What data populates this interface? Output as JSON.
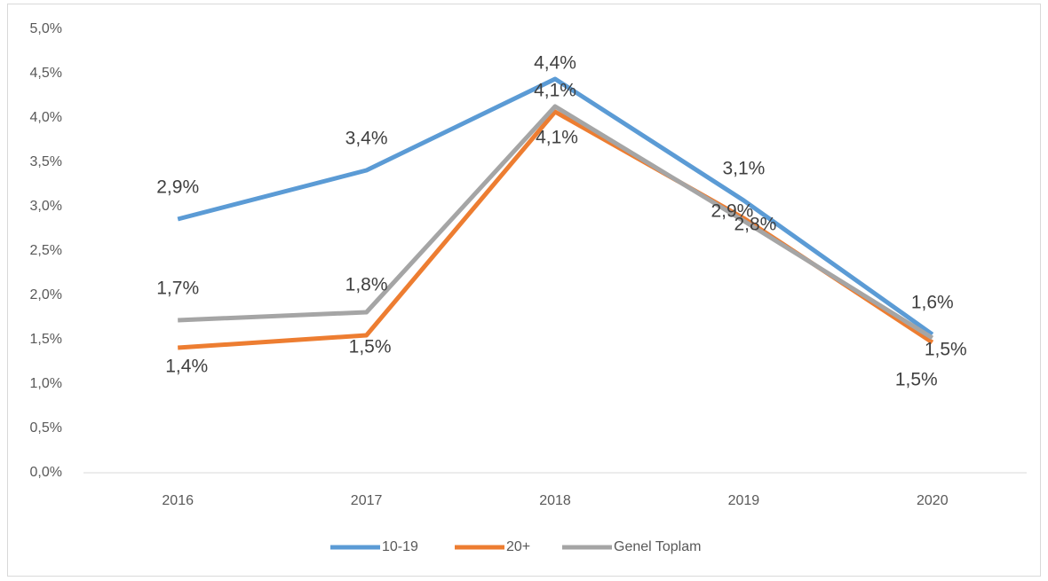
{
  "chart_data": {
    "type": "line",
    "categories": [
      "2016",
      "2017",
      "2018",
      "2019",
      "2020"
    ],
    "series": [
      {
        "name": "10-19",
        "color": "#5b9bd5",
        "values": [
          2.86,
          3.41,
          4.44,
          3.07,
          1.56
        ],
        "value_labels": [
          "2,9%",
          "3,4%",
          "4,4%",
          "3,1%",
          "1,6%"
        ]
      },
      {
        "name": "20+",
        "color": "#ed7d31",
        "values": [
          1.41,
          1.55,
          4.07,
          2.87,
          1.47
        ],
        "value_labels": [
          "1,4%",
          "1,5%",
          "4,1%",
          "2,9%",
          "1,5%"
        ]
      },
      {
        "name": "Genel Toplam",
        "color": "#a5a5a5",
        "values": [
          1.72,
          1.81,
          4.13,
          2.84,
          1.52
        ],
        "value_labels": [
          "1,7%",
          "1,8%",
          "4,1%",
          "2,8%",
          "1,5%"
        ]
      }
    ],
    "ylim": [
      0,
      5
    ],
    "yticks": [
      {
        "value": 0,
        "label": "0,0%"
      },
      {
        "value": 0.5,
        "label": "0,5%"
      },
      {
        "value": 1,
        "label": "1,0%"
      },
      {
        "value": 1.5,
        "label": "1,5%"
      },
      {
        "value": 2,
        "label": "2,0%"
      },
      {
        "value": 2.5,
        "label": "2,5%"
      },
      {
        "value": 3,
        "label": "3,0%"
      },
      {
        "value": 3.5,
        "label": "3,5%"
      },
      {
        "value": 4,
        "label": "4,0%"
      },
      {
        "value": 4.5,
        "label": "4,5%"
      },
      {
        "value": 5,
        "label": "5,0%"
      }
    ],
    "grid": false,
    "legend": "bottom"
  }
}
